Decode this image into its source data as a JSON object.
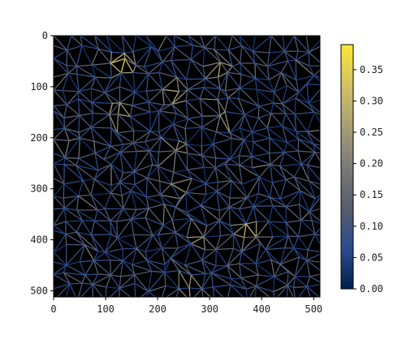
{
  "chart_data": {
    "type": "heatmap",
    "subtype": "triangulated-mesh-edge-plot",
    "title": "",
    "xlabel": "",
    "ylabel": "",
    "x_ticks": [
      0,
      100,
      200,
      300,
      400,
      500
    ],
    "y_ticks": [
      0,
      100,
      200,
      300,
      400,
      500
    ],
    "xlim": [
      0,
      512
    ],
    "ylim": [
      512,
      0
    ],
    "y_inverted": true,
    "background": "#000000",
    "colormap": "cividis",
    "colormap_stops": [
      "#00204c",
      "#2a4a8e",
      "#575d6d",
      "#7c7b78",
      "#a69d75",
      "#d3c164",
      "#fde737"
    ],
    "colorbar": {
      "vmin": 0.0,
      "vmax": 0.39,
      "ticks": [
        0.0,
        0.05,
        0.1,
        0.15,
        0.2,
        0.25,
        0.3,
        0.35
      ],
      "tick_labels": [
        "0.00",
        "0.05",
        "0.10",
        "0.15",
        "0.20",
        "0.25",
        "0.30",
        "0.35"
      ]
    },
    "mesh": {
      "grid_spacing": 26,
      "jitter": 9,
      "value_distribution": "mostly 0.03-0.15 with sparse bright edges up to ~0.39",
      "highlight_regions": [
        {
          "x": 130,
          "y": 55,
          "value": 0.36
        },
        {
          "x": 120,
          "y": 150,
          "value": 0.32
        },
        {
          "x": 230,
          "y": 115,
          "value": 0.3
        },
        {
          "x": 320,
          "y": 65,
          "value": 0.28
        },
        {
          "x": 330,
          "y": 160,
          "value": 0.27
        },
        {
          "x": 230,
          "y": 225,
          "value": 0.28
        },
        {
          "x": 240,
          "y": 300,
          "value": 0.26
        },
        {
          "x": 375,
          "y": 385,
          "value": 0.33
        },
        {
          "x": 280,
          "y": 395,
          "value": 0.26
        },
        {
          "x": 260,
          "y": 495,
          "value": 0.3
        },
        {
          "x": 30,
          "y": 210,
          "value": 0.24
        }
      ]
    }
  }
}
